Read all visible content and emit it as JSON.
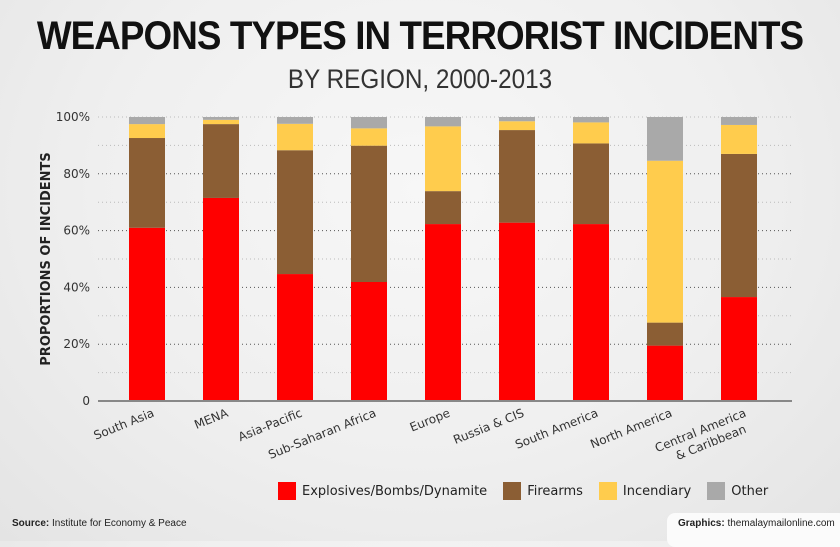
{
  "title": "WEAPONS TYPES IN TERRORIST INCIDENTS",
  "subtitle": "BY REGION, 2000-2013",
  "chart_data": {
    "type": "bar",
    "stacked": true,
    "title": "WEAPONS TYPES IN TERRORIST INCIDENTS",
    "subtitle": "BY REGION, 2000-2013",
    "xlabel": "",
    "ylabel": "PROPORTIONS OF INCIDENTS",
    "ylim": [
      0,
      100
    ],
    "yticks": [
      0,
      20,
      40,
      60,
      80,
      100
    ],
    "ytick_labels": [
      "0",
      "20%",
      "40%",
      "60%",
      "80%",
      "100%"
    ],
    "grid": "dotted horizontal every 10%",
    "categories": [
      "South Asia",
      "MENA",
      "Asia-Pacific",
      "Sub-Saharan Africa",
      "Europe",
      "Russia & CIS",
      "South America",
      "North America",
      "Central America & Caribbean"
    ],
    "category_lines": [
      [
        "South Asia"
      ],
      [
        "MENA"
      ],
      [
        "Asia-Pacific"
      ],
      [
        "Sub-Saharan Africa"
      ],
      [
        "Europe"
      ],
      [
        "Russia & CIS"
      ],
      [
        "South America"
      ],
      [
        "North America"
      ],
      [
        "Central America",
        "& Caribbean"
      ]
    ],
    "series": [
      {
        "name": "Explosives/Bombs/Dynamite",
        "color": "#FF0000",
        "values": [
          61.0,
          71.5,
          44.7,
          41.9,
          62.3,
          62.8,
          62.3,
          19.5,
          36.6
        ]
      },
      {
        "name": "Firearms",
        "color": "#8B5E34",
        "values": [
          31.6,
          26.0,
          43.6,
          48.0,
          11.6,
          32.6,
          28.4,
          8.1,
          50.4
        ]
      },
      {
        "name": "Incendiary",
        "color": "#FFCC4D",
        "values": [
          4.9,
          1.5,
          9.3,
          6.1,
          22.8,
          3.1,
          7.4,
          57.0,
          10.2
        ]
      },
      {
        "name": "Other",
        "color": "#A9A9A9",
        "values": [
          2.5,
          1.0,
          2.4,
          4.0,
          3.3,
          1.5,
          1.9,
          15.4,
          2.8
        ]
      }
    ],
    "legend": "bottom"
  },
  "footer": {
    "source_label": "Source:",
    "source_text": "Institute for Economy & Peace",
    "credit_label": "Graphics:",
    "credit_text": "themalaymailonline.com"
  }
}
